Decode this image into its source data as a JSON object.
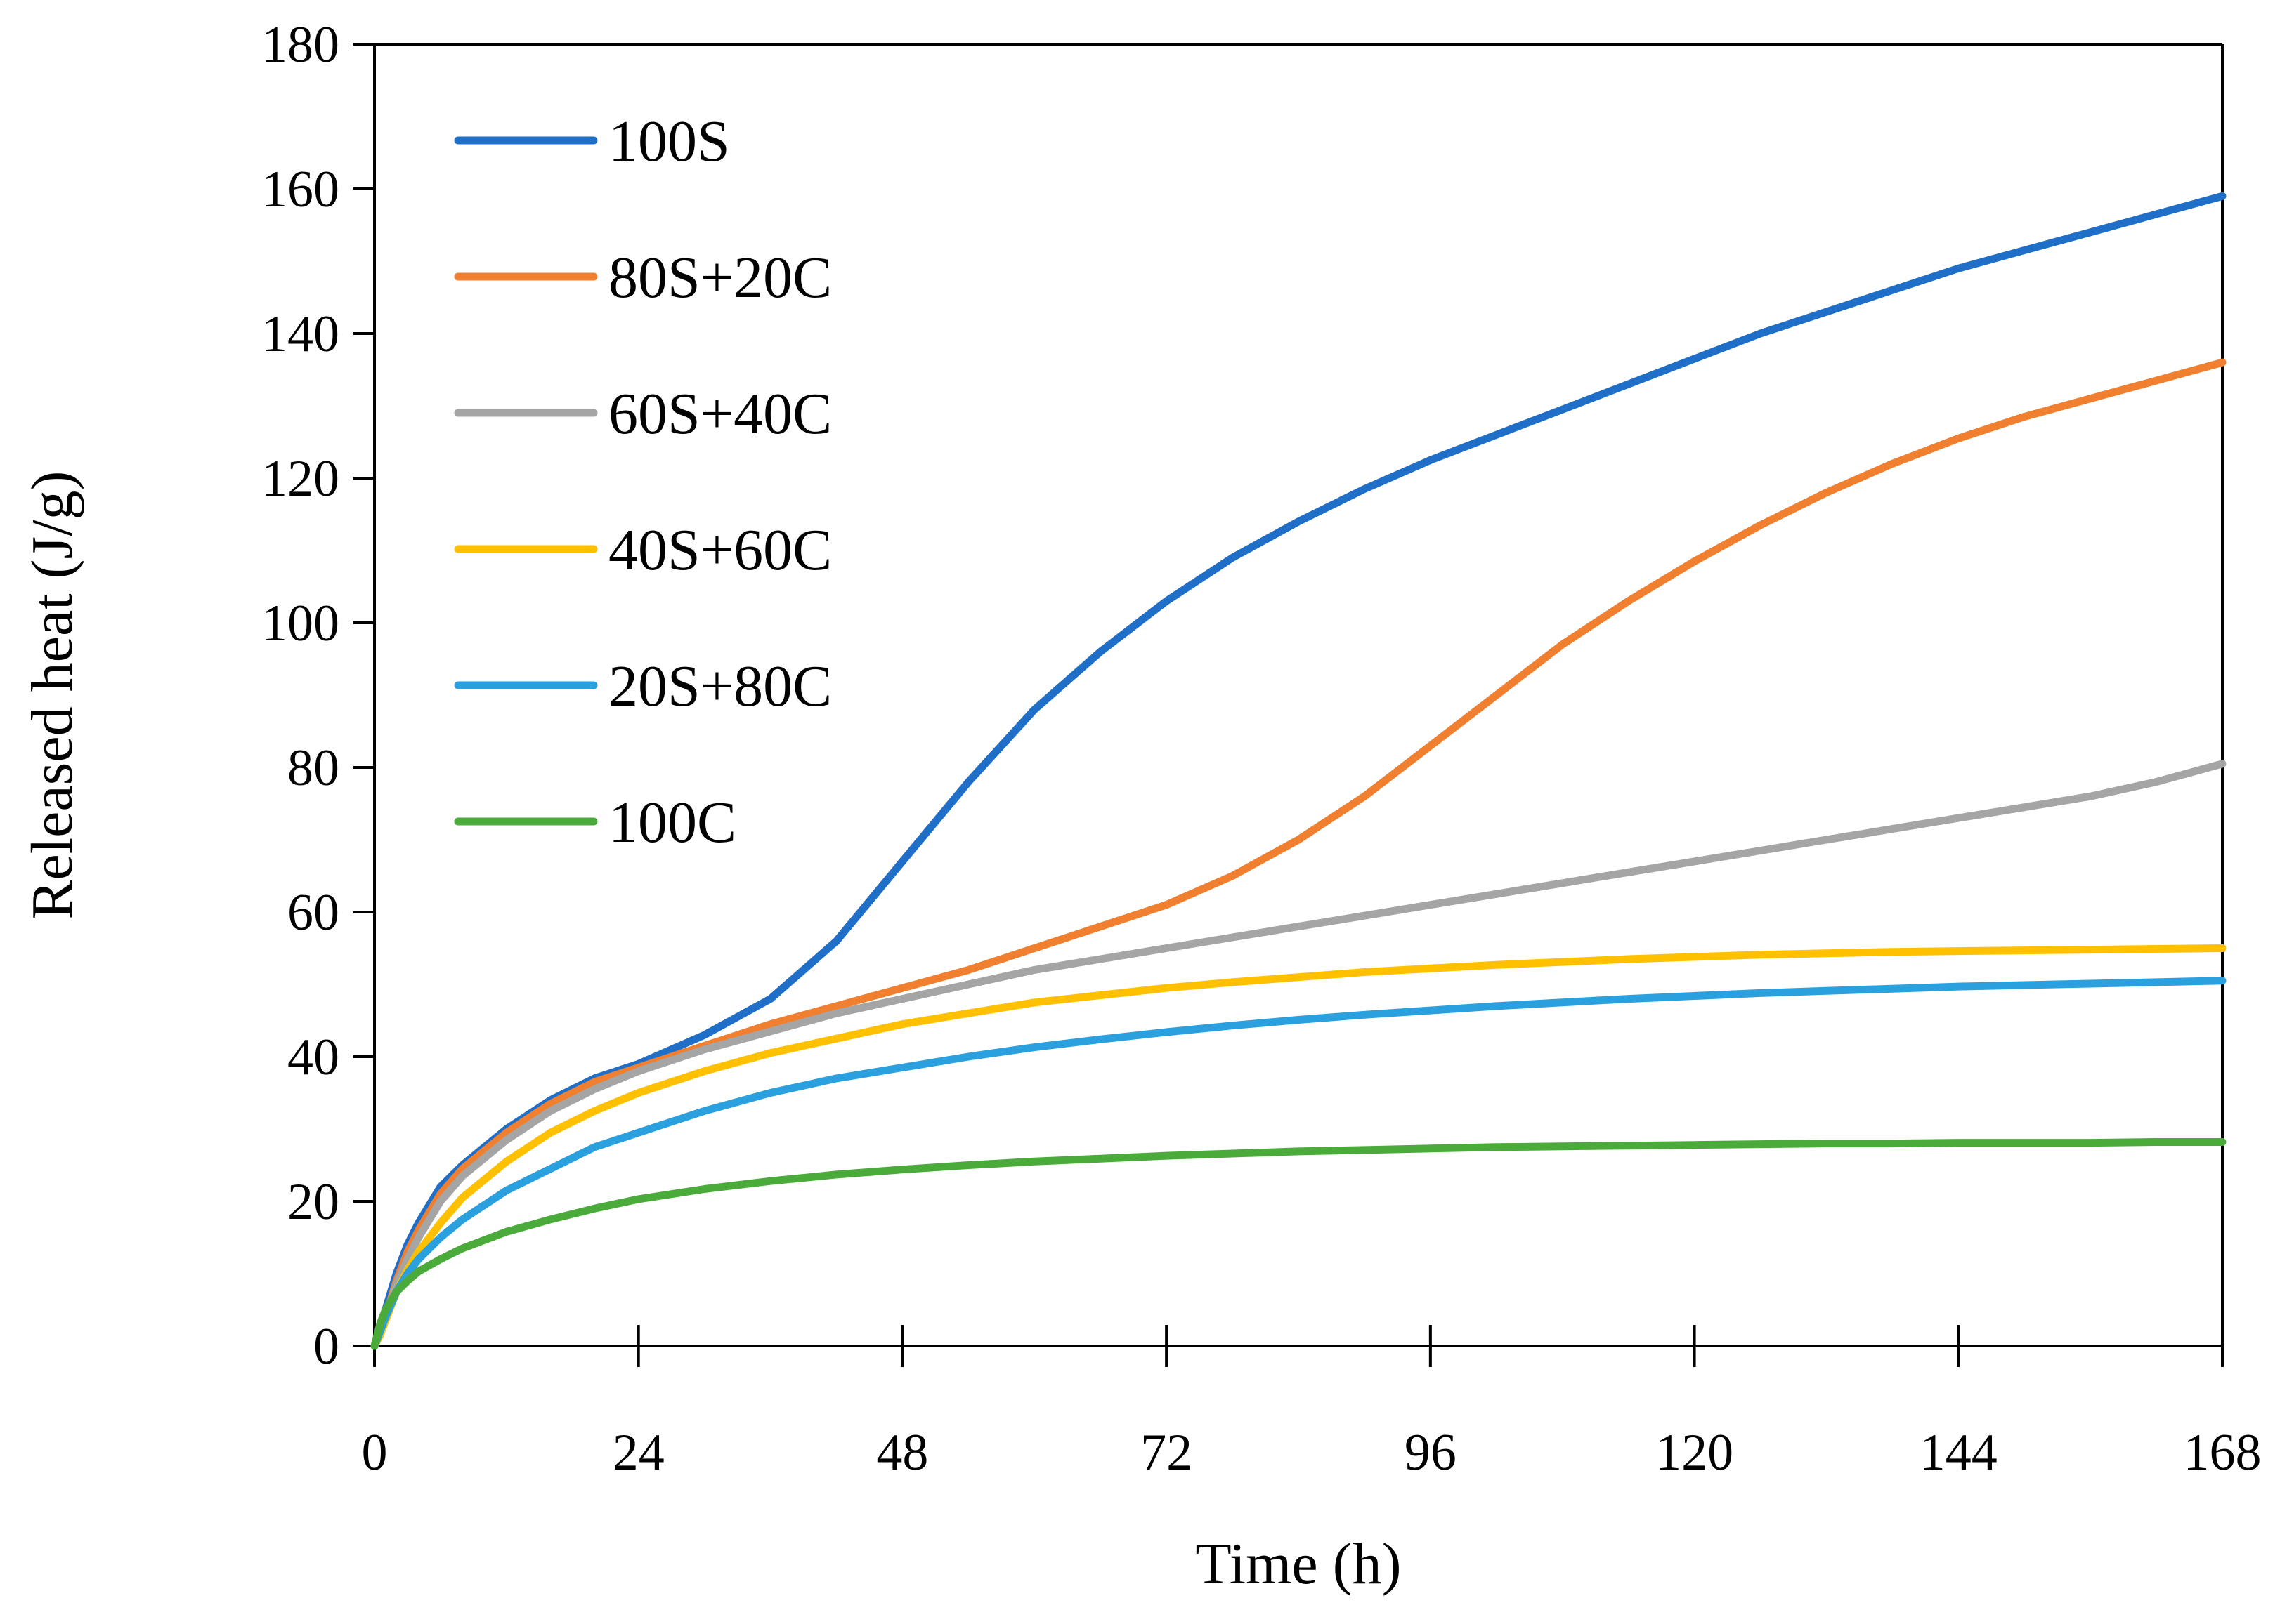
{
  "chart_data": {
    "type": "line",
    "title": "",
    "xlabel": "Time (h)",
    "ylabel": "Released heat (J/g)",
    "xlim": [
      0,
      168
    ],
    "ylim": [
      0,
      180
    ],
    "xticks": [
      0,
      24,
      48,
      72,
      96,
      120,
      144,
      168
    ],
    "yticks": [
      0,
      20,
      40,
      60,
      80,
      100,
      120,
      140,
      160,
      180
    ],
    "grid": false,
    "legend_position": "top-left",
    "series": [
      {
        "name": "100S",
        "color": "#1f6fc8",
        "x": [
          0,
          0.5,
          1,
          2,
          3,
          4,
          6,
          8,
          12,
          16,
          20,
          24,
          30,
          36,
          42,
          48,
          54,
          60,
          66,
          72,
          78,
          84,
          90,
          96,
          102,
          108,
          114,
          120,
          126,
          132,
          138,
          144,
          150,
          156,
          162,
          168
        ],
        "y": [
          0,
          2,
          5,
          10,
          14,
          17,
          22,
          25,
          30,
          34,
          37,
          39,
          43,
          48,
          56,
          67,
          78,
          88,
          96,
          103,
          109,
          114,
          118.5,
          122.5,
          126,
          129.5,
          133,
          136.5,
          140,
          143,
          146,
          149,
          151.5,
          154,
          156.5,
          159
        ]
      },
      {
        "name": "80S+20C",
        "color": "#f07f30",
        "x": [
          0,
          0.5,
          1,
          2,
          3,
          4,
          6,
          8,
          12,
          16,
          20,
          24,
          30,
          36,
          42,
          48,
          54,
          60,
          66,
          72,
          78,
          84,
          90,
          96,
          102,
          108,
          114,
          120,
          126,
          132,
          138,
          144,
          150,
          156,
          162,
          168
        ],
        "y": [
          0,
          1.5,
          4,
          9,
          13,
          16,
          21,
          24.5,
          29.5,
          33.5,
          36.5,
          38.5,
          41.5,
          44.5,
          47,
          49.5,
          52,
          55,
          58,
          61,
          65,
          70,
          76,
          83,
          90,
          97,
          103,
          108.5,
          113.5,
          118,
          122,
          125.5,
          128.5,
          131,
          133.5,
          136
        ]
      },
      {
        "name": "60S+40C",
        "color": "#a5a5a5",
        "x": [
          0,
          0.5,
          1,
          2,
          3,
          4,
          6,
          8,
          12,
          16,
          20,
          24,
          30,
          36,
          42,
          48,
          54,
          60,
          66,
          72,
          78,
          84,
          90,
          96,
          102,
          108,
          114,
          120,
          126,
          132,
          138,
          144,
          150,
          156,
          162,
          168
        ],
        "y": [
          0,
          1.5,
          4,
          8.5,
          12,
          15,
          20,
          23.5,
          28.5,
          32.5,
          35.5,
          38,
          41,
          43.5,
          46,
          48,
          50,
          52,
          53.5,
          55,
          56.5,
          58,
          59.5,
          61,
          62.5,
          64,
          65.5,
          67,
          68.5,
          70,
          71.5,
          73,
          74.5,
          76,
          78,
          80.5
        ]
      },
      {
        "name": "40S+60C",
        "color": "#ffc000",
        "x": [
          0,
          0.5,
          1,
          2,
          3,
          4,
          6,
          8,
          12,
          16,
          20,
          24,
          30,
          36,
          42,
          48,
          54,
          60,
          66,
          72,
          78,
          84,
          90,
          96,
          102,
          108,
          114,
          120,
          126,
          132,
          138,
          144,
          150,
          156,
          162,
          168
        ],
        "y": [
          0,
          1.5,
          3.5,
          7.5,
          10.5,
          13,
          17,
          20.5,
          25.5,
          29.5,
          32.5,
          35,
          38,
          40.5,
          42.5,
          44.5,
          46,
          47.5,
          48.5,
          49.5,
          50.3,
          51,
          51.7,
          52.2,
          52.7,
          53.1,
          53.5,
          53.8,
          54.1,
          54.3,
          54.5,
          54.6,
          54.7,
          54.8,
          54.9,
          55
        ]
      },
      {
        "name": "20S+80C",
        "color": "#2aa0de",
        "x": [
          0,
          0.5,
          1,
          2,
          3,
          4,
          6,
          8,
          12,
          16,
          20,
          24,
          30,
          36,
          42,
          48,
          54,
          60,
          66,
          72,
          78,
          84,
          90,
          96,
          102,
          108,
          114,
          120,
          126,
          132,
          138,
          144,
          150,
          156,
          162,
          168
        ],
        "y": [
          0,
          2,
          4,
          7.5,
          10,
          12,
          15,
          17.5,
          21.5,
          24.5,
          27.5,
          29.5,
          32.5,
          35,
          37,
          38.5,
          40,
          41.3,
          42.4,
          43.4,
          44.3,
          45.1,
          45.8,
          46.4,
          47,
          47.5,
          48,
          48.4,
          48.8,
          49.1,
          49.4,
          49.7,
          49.9,
          50.1,
          50.3,
          50.5
        ]
      },
      {
        "name": "100C",
        "color": "#4aab3a",
        "x": [
          0,
          0.5,
          1,
          2,
          3,
          4,
          6,
          8,
          12,
          16,
          20,
          24,
          30,
          36,
          42,
          48,
          54,
          60,
          66,
          72,
          78,
          84,
          90,
          96,
          102,
          108,
          114,
          120,
          126,
          132,
          138,
          144,
          150,
          156,
          162,
          168
        ],
        "y": [
          0,
          3,
          5,
          7.5,
          9,
          10.3,
          12,
          13.5,
          15.8,
          17.5,
          19,
          20.3,
          21.7,
          22.8,
          23.7,
          24.4,
          25,
          25.5,
          25.9,
          26.3,
          26.6,
          26.9,
          27.1,
          27.3,
          27.5,
          27.6,
          27.7,
          27.8,
          27.9,
          28,
          28,
          28.1,
          28.1,
          28.1,
          28.2,
          28.2
        ]
      }
    ]
  }
}
